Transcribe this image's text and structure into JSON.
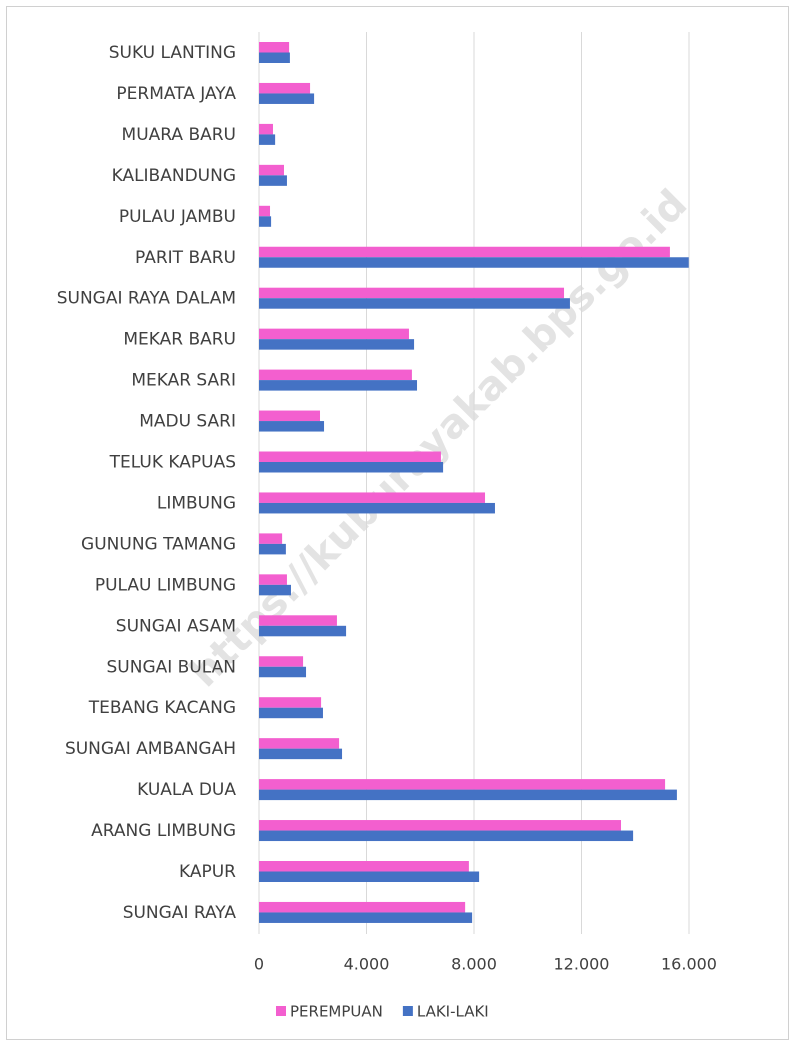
{
  "chart_data": {
    "type": "hbar",
    "watermark": "https://kuburayakab.bps.go.id",
    "categories": [
      "SUKU LANTING",
      "PERMATA JAYA",
      "MUARA BARU",
      "KALIBANDUNG",
      "PULAU JAMBU",
      "PARIT BARU",
      "SUNGAI RAYA DALAM",
      "MEKAR BARU",
      "MEKAR SARI",
      "MADU SARI",
      "TELUK KAPUAS",
      "LIMBUNG",
      "GUNUNG TAMANG",
      "PULAU LIMBUNG",
      "SUNGAI ASAM",
      "SUNGAI BULAN",
      "TEBANG KACANG",
      "SUNGAI AMBANGAH",
      "KUALA DUA",
      "ARANG LIMBUNG",
      "KAPUR",
      "SUNGAI RAYA"
    ],
    "series": [
      {
        "name": "PEREMPUAN",
        "color": "#f35fcf",
        "values": [
          1120,
          1900,
          520,
          930,
          410,
          15290,
          11350,
          5580,
          5690,
          2270,
          6770,
          8410,
          860,
          1040,
          2900,
          1640,
          2310,
          2980,
          15110,
          13470,
          7810,
          7670
        ]
      },
      {
        "name": "LAKI-LAKI",
        "color": "#4472c4",
        "values": [
          1150,
          2050,
          600,
          1040,
          450,
          15990,
          11570,
          5770,
          5880,
          2420,
          6850,
          8780,
          1000,
          1190,
          3240,
          1750,
          2380,
          3090,
          15550,
          13920,
          8190,
          7930
        ]
      }
    ],
    "xlim": [
      0,
      18000
    ],
    "xticks": [
      0,
      {
        "value": 4000,
        "label": "4.000"
      },
      {
        "value": 8000,
        "label": "8.000"
      },
      {
        "value": 12000,
        "label": "12.000"
      },
      {
        "value": 16000,
        "label": "16.000"
      }
    ],
    "grid": true,
    "legend": "bottom"
  }
}
